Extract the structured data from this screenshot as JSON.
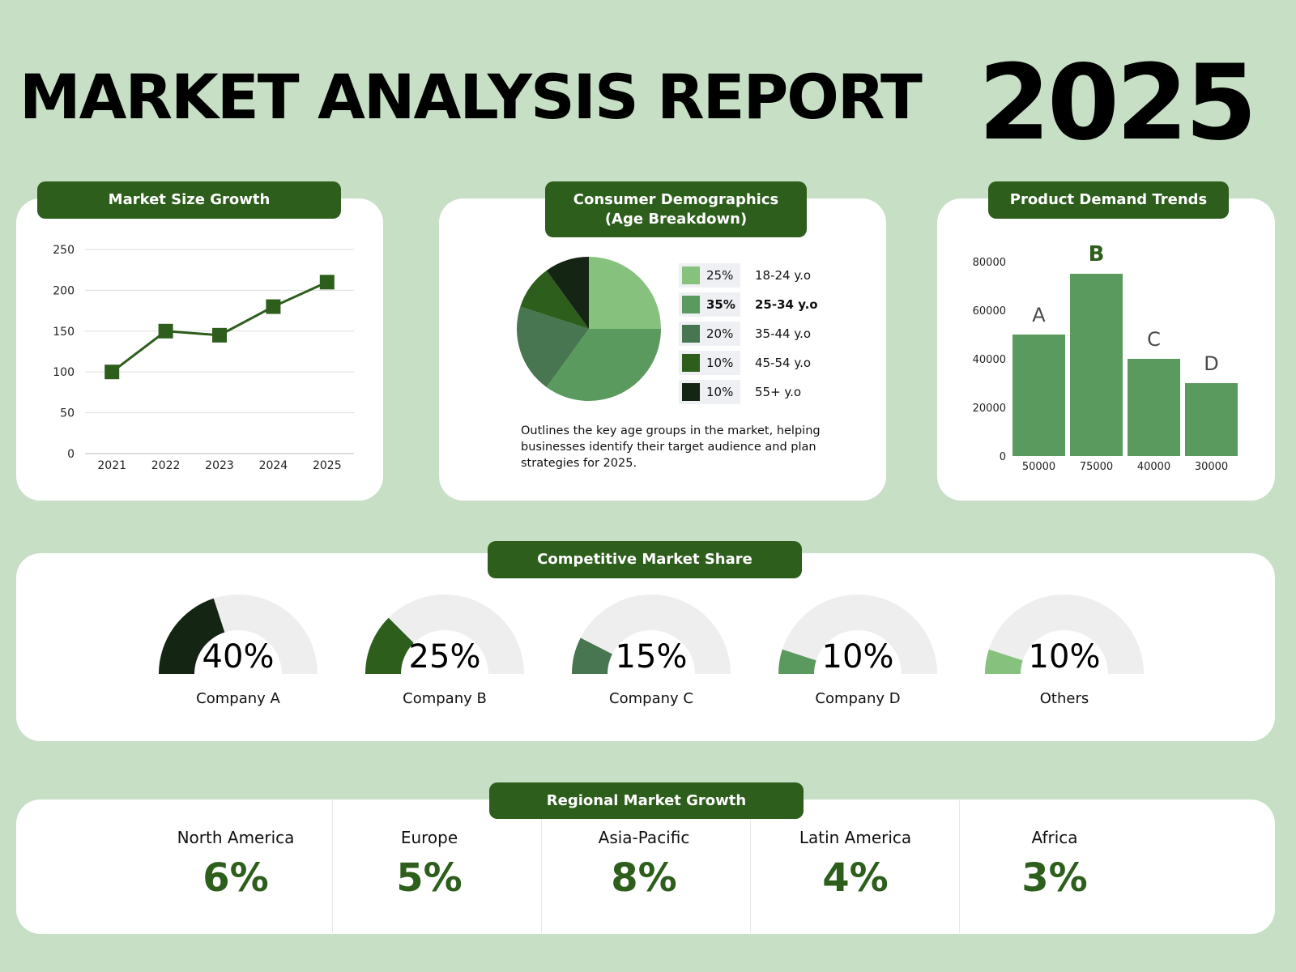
{
  "header": {
    "title": "MARKET ANALYSIS REPORT",
    "year": "2025"
  },
  "colors": {
    "background": "#c6dfc5",
    "accent": "#2d5e1c",
    "card": "#ffffff"
  },
  "market_size": {
    "title": "Market Size Growth"
  },
  "demographics": {
    "title_line1": "Consumer Demographics",
    "title_line2": "(Age Breakdown)",
    "legend": [
      {
        "pct": "25%",
        "label": "18-24 y.o",
        "color": "#86c17e",
        "bold": false
      },
      {
        "pct": "35%",
        "label": "25-34 y.o",
        "color": "#5b9a5e",
        "bold": true
      },
      {
        "pct": "20%",
        "label": "35-44 y.o",
        "color": "#477650",
        "bold": false
      },
      {
        "pct": "10%",
        "label": "45-54 y.o",
        "color": "#2d5e1c",
        "bold": false
      },
      {
        "pct": "10%",
        "label": "55+ y.o",
        "color": "#142514",
        "bold": false
      }
    ],
    "description": "Outlines the key age groups in the market, helping businesses identify their target audience and plan strategies for 2025."
  },
  "product_demand": {
    "title": "Product Demand Trends"
  },
  "competitive": {
    "title": "Competitive Market Share",
    "companies": [
      {
        "name": "Company A",
        "value_label": "40%",
        "value": 40,
        "color": "#142514"
      },
      {
        "name": "Company B",
        "value_label": "25%",
        "value": 25,
        "color": "#2d5e1c"
      },
      {
        "name": "Company C",
        "value_label": "15%",
        "value": 15,
        "color": "#477650"
      },
      {
        "name": "Company D",
        "value_label": "10%",
        "value": 10,
        "color": "#5b9a5e"
      },
      {
        "name": "Others",
        "value_label": "10%",
        "value": 10,
        "color": "#86c17e"
      }
    ]
  },
  "regional": {
    "title": "Regional Market Growth",
    "regions": [
      {
        "name": "North America",
        "value": "6%"
      },
      {
        "name": "Europe",
        "value": "5%"
      },
      {
        "name": "Asia-Pacific",
        "value": "8%"
      },
      {
        "name": "Latin America",
        "value": "4%"
      },
      {
        "name": "Africa",
        "value": "3%"
      }
    ]
  },
  "chart_data": [
    {
      "type": "line",
      "title": "Market Size Growth",
      "x": [
        "2021",
        "2022",
        "2023",
        "2024",
        "2025"
      ],
      "values": [
        100,
        150,
        145,
        180,
        210
      ],
      "ylim": [
        0,
        250
      ],
      "yticks": [
        0,
        50,
        100,
        150,
        200,
        250
      ],
      "grid": true,
      "color": "#2d5e1c"
    },
    {
      "type": "pie",
      "title": "Consumer Demographics (Age Breakdown)",
      "categories": [
        "18-24 y.o",
        "25-34 y.o",
        "35-44 y.o",
        "45-54 y.o",
        "55+ y.o"
      ],
      "values": [
        25,
        35,
        20,
        10,
        10
      ],
      "colors": [
        "#86c17e",
        "#5b9a5e",
        "#477650",
        "#2d5e1c",
        "#142514"
      ]
    },
    {
      "type": "bar",
      "title": "Product Demand Trends",
      "categories": [
        "A",
        "B",
        "C",
        "D"
      ],
      "values": [
        50000,
        75000,
        40000,
        30000
      ],
      "value_labels": [
        "50000",
        "75000",
        "40000",
        "30000"
      ],
      "ylim": [
        0,
        80000
      ],
      "yticks": [
        0,
        20000,
        40000,
        60000,
        80000
      ],
      "color": "#5b9a5e"
    }
  ]
}
